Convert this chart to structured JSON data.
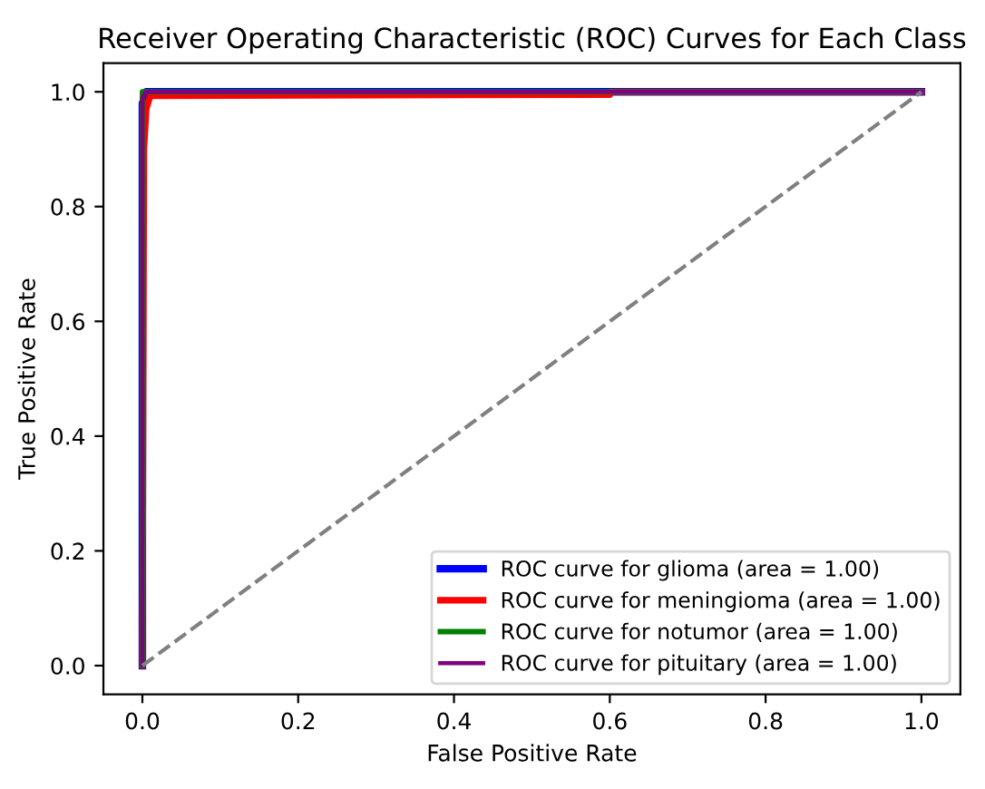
{
  "chart_data": {
    "type": "line",
    "title": "Receiver Operating Characteristic (ROC) Curves for Each Class",
    "xlabel": "False Positive Rate",
    "ylabel": "True Positive Rate",
    "xlim": [
      -0.05,
      1.05
    ],
    "ylim": [
      -0.05,
      1.05
    ],
    "xticks": [
      {
        "value": 0,
        "label": "0.0"
      },
      0.2,
      0.4,
      0.6,
      0.8,
      {
        "value": 1,
        "label": "1.0"
      }
    ],
    "yticks": [
      {
        "value": 0,
        "label": "0.0"
      },
      0.2,
      0.4,
      0.6,
      0.8,
      {
        "value": 1,
        "label": "1.0"
      }
    ],
    "legend": "bottom right",
    "marker": "none",
    "series": [
      {
        "name": "ROC curve for glioma (area = 1.00)",
        "color": "#0000ff",
        "x": [
          0,
          0,
          0.003,
          0.005,
          1
        ],
        "values": [
          0,
          0.98,
          0.99,
          1,
          1
        ]
      },
      {
        "name": "ROC curve for meningioma (area = 1.00)",
        "color": "#ff0000",
        "x": [
          0,
          0.002,
          0.005,
          0.01,
          0.6,
          0.6,
          1
        ],
        "values": [
          0,
          0.9,
          0.97,
          0.993,
          0.995,
          1,
          1
        ]
      },
      {
        "name": "ROC curve for notumor (area = 1.00)",
        "color": "#008000",
        "x": [
          0,
          0,
          1
        ],
        "values": [
          0,
          1,
          1
        ]
      },
      {
        "name": "ROC curve for pituitary (area = 1.00)",
        "color": "#800080",
        "x": [
          0,
          0,
          0.005,
          1
        ],
        "values": [
          0,
          0.99,
          1,
          1
        ]
      },
      {
        "color": "#808080",
        "line_style": "dashed",
        "x": [
          0,
          1
        ],
        "values": [
          0,
          1
        ]
      }
    ]
  }
}
